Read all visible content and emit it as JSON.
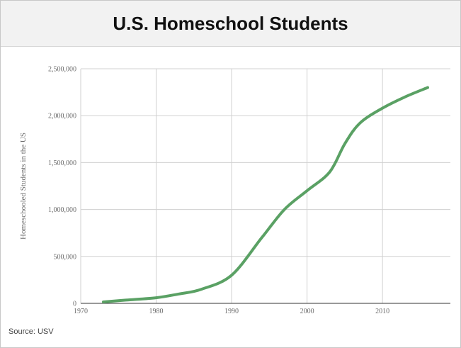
{
  "title": "U.S. Homeschool Students",
  "source": "Source: USV",
  "colors": {
    "line": "#5aa164",
    "grid": "#d0d0d0",
    "axis": "#333333"
  },
  "chart_data": {
    "type": "line",
    "title": "U.S. Homeschool Students",
    "xlabel": "",
    "ylabel": "Homeschooled Students in the US",
    "xlim": [
      1970,
      2019
    ],
    "ylim": [
      0,
      2500000
    ],
    "x_ticks": [
      1970,
      1980,
      1990,
      2000,
      2010
    ],
    "x_tick_labels": [
      "1970",
      "1980",
      "1990",
      "2000",
      "2010"
    ],
    "y_ticks": [
      0,
      500000,
      1000000,
      1500000,
      2000000,
      2500000
    ],
    "y_tick_labels": [
      "0",
      "500,000",
      "1,000,000",
      "1,500,000",
      "2,000,000",
      "2,500,000"
    ],
    "grid": true,
    "series": [
      {
        "x": [
          1973,
          1976,
          1980,
          1983,
          1986,
          1990,
          1994,
          1997,
          2000,
          2003,
          2005,
          2007,
          2010,
          2013,
          2016
        ],
        "y": [
          15000,
          35000,
          60000,
          100000,
          150000,
          300000,
          700000,
          1000000,
          1200000,
          1400000,
          1700000,
          1920000,
          2080000,
          2200000,
          2300000
        ]
      }
    ]
  }
}
